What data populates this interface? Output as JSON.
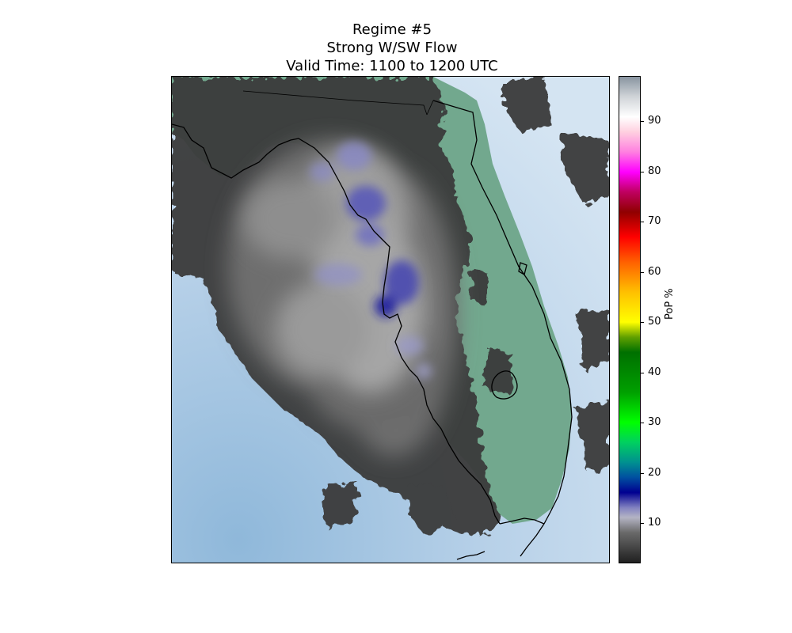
{
  "figure": {
    "title_line1": "Regime #5",
    "title_line2": "Strong W/SW Flow",
    "title_line3": "Valid Time: 1100 to 1200 UTC"
  },
  "map": {
    "region": "Florida",
    "ocean_color": "#a8c8e4",
    "land_color": "#72a88e",
    "coastline_color": "#000000"
  },
  "colorbar": {
    "label": "PoP %",
    "min": 2,
    "max": 99,
    "ticks": [
      {
        "value": 10,
        "label": "10"
      },
      {
        "value": 20,
        "label": "20"
      },
      {
        "value": 30,
        "label": "30"
      },
      {
        "value": 40,
        "label": "40"
      },
      {
        "value": 50,
        "label": "50"
      },
      {
        "value": 60,
        "label": "60"
      },
      {
        "value": 70,
        "label": "70"
      },
      {
        "value": 80,
        "label": "80"
      },
      {
        "value": 90,
        "label": "90"
      }
    ],
    "stops": [
      {
        "value": 2,
        "color": "#202020"
      },
      {
        "value": 8,
        "color": "#6a6a6a"
      },
      {
        "value": 11,
        "color": "#b4b4c4"
      },
      {
        "value": 13,
        "color": "#8080c0"
      },
      {
        "value": 16,
        "color": "#000090"
      },
      {
        "value": 19,
        "color": "#0050a0"
      },
      {
        "value": 22,
        "color": "#009090"
      },
      {
        "value": 26,
        "color": "#00d060"
      },
      {
        "value": 30,
        "color": "#00ff00"
      },
      {
        "value": 36,
        "color": "#00a000"
      },
      {
        "value": 44,
        "color": "#007000"
      },
      {
        "value": 47,
        "color": "#60a000"
      },
      {
        "value": 50,
        "color": "#ffff00"
      },
      {
        "value": 56,
        "color": "#ffc000"
      },
      {
        "value": 62,
        "color": "#ff6000"
      },
      {
        "value": 67,
        "color": "#ff0000"
      },
      {
        "value": 72,
        "color": "#900000"
      },
      {
        "value": 76,
        "color": "#c00060"
      },
      {
        "value": 80,
        "color": "#ff00ff"
      },
      {
        "value": 84,
        "color": "#ff80e0"
      },
      {
        "value": 88,
        "color": "#ffd0e0"
      },
      {
        "value": 91,
        "color": "#ffffff"
      },
      {
        "value": 95,
        "color": "#d0d4d8"
      },
      {
        "value": 99,
        "color": "#8894a0"
      }
    ]
  }
}
